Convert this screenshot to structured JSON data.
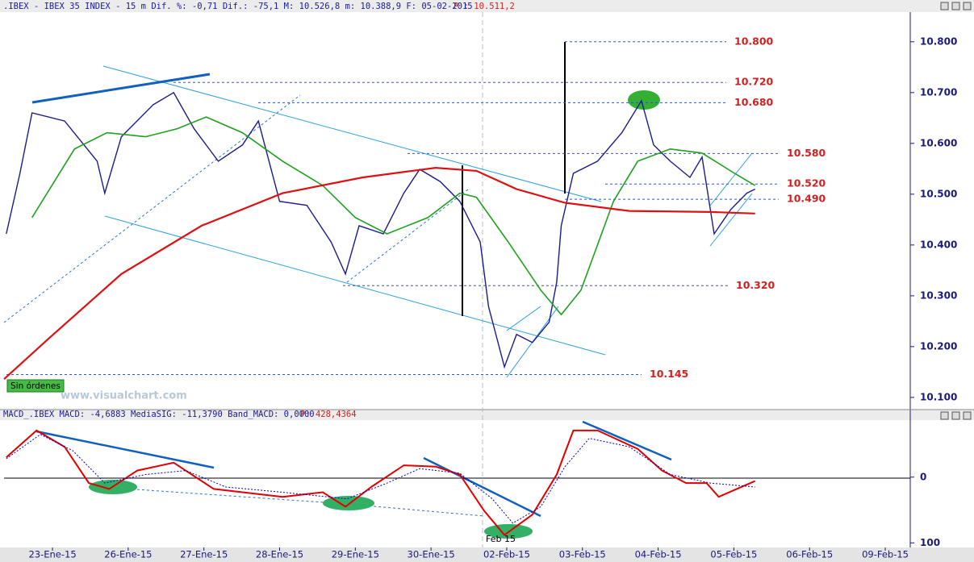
{
  "chart_data": [
    {
      "type": "line",
      "title": ".IBEX - IBEX 35 INDEX -   15 m Dif. %: -0,71 Dif.: -75,1 M: 10.526,8 m: 10.388,9 F: 05-02-2015",
      "price_label": "P : 10.511,2",
      "xlim": [
        -0.64,
        11.33
      ],
      "ylim": [
        10076,
        10860
      ],
      "yticks": [
        {
          "value": 10100,
          "label": "10.100"
        },
        {
          "value": 10200,
          "label": "10.200"
        },
        {
          "value": 10300,
          "label": "10.300"
        },
        {
          "value": 10400,
          "label": "10.400"
        },
        {
          "value": 10500,
          "label": "10.500"
        },
        {
          "value": 10600,
          "label": "10.600"
        },
        {
          "value": 10700,
          "label": "10.700"
        },
        {
          "value": 10800,
          "label": "10.800"
        }
      ],
      "levels": [
        {
          "value": 10800,
          "label": "10.800"
        },
        {
          "value": 10720,
          "label": "10.720"
        },
        {
          "value": 10680,
          "label": "10.680"
        },
        {
          "value": 10580,
          "label": "10.580"
        },
        {
          "value": 10520,
          "label": "10.520"
        },
        {
          "value": 10490,
          "label": "10.490"
        },
        {
          "value": 10320,
          "label": "10.320"
        },
        {
          "value": 10145,
          "label": "10.145"
        }
      ],
      "series": [
        {
          "color": "#1c1c8a",
          "width": 1.4,
          "dash": false,
          "x": [
            -0.61,
            -0.43,
            -0.27,
            0.16,
            0.59,
            0.69,
            0.91,
            1.33,
            1.6,
            1.87,
            2.19,
            2.51,
            2.72,
            3.0,
            3.36,
            3.68,
            3.87,
            4.05,
            4.37,
            4.64,
            4.85,
            5.12,
            5.38,
            5.65,
            5.76,
            5.97,
            6.13,
            6.34,
            6.56,
            6.66,
            6.72,
            6.88,
            7.2,
            7.52,
            7.78,
            7.94,
            8.16,
            8.42,
            8.58,
            8.74,
            8.96,
            9.17,
            9.28
          ],
          "values": [
            10422,
            10541,
            10660,
            10644,
            10565,
            10502,
            10613,
            10676,
            10700,
            10629,
            10565,
            10597,
            10644,
            10486,
            10478,
            10406,
            10343,
            10438,
            10422,
            10502,
            10549,
            10525,
            10486,
            10406,
            10279,
            10160,
            10224,
            10208,
            10248,
            10327,
            10438,
            10541,
            10565,
            10621,
            10684,
            10597,
            10565,
            10533,
            10573,
            10422,
            10470,
            10502,
            10510
          ]
        },
        {
          "color": "#1fa01f",
          "width": 1.6,
          "dash": false,
          "x": [
            -0.27,
            0.29,
            0.72,
            1.23,
            1.65,
            2.03,
            2.51,
            3.04,
            3.57,
            4.0,
            4.42,
            4.96,
            5.38,
            5.6,
            6.02,
            6.45,
            6.72,
            6.98,
            7.41,
            7.73,
            8.16,
            8.58,
            9.01,
            9.28
          ],
          "values": [
            10454,
            10589,
            10621,
            10613,
            10629,
            10652,
            10621,
            10565,
            10517,
            10454,
            10422,
            10454,
            10502,
            10494,
            10406,
            10311,
            10263,
            10311,
            10486,
            10565,
            10589,
            10581,
            10541,
            10517
          ]
        },
        {
          "color": "#dd1111",
          "width": 2.2,
          "dash": false,
          "x": [
            -0.64,
            -0.05,
            0.91,
            1.97,
            3.04,
            4.1,
            5.06,
            5.6,
            6.13,
            6.77,
            7.62,
            8.69,
            9.28
          ],
          "values": [
            10136,
            10216,
            10343,
            10438,
            10502,
            10533,
            10552,
            10546,
            10510,
            10483,
            10467,
            10465,
            10462
          ]
        }
      ]
    },
    {
      "type": "line",
      "title": "MACD_.IBEX MACD: -4,6883 MediaSIG: -11,3790 Band_MACD: 0,0000",
      "price_label": "P: 428,4364",
      "xlim": [
        -0.64,
        11.33
      ],
      "ylim": [
        -107,
        88
      ],
      "yticks": [
        0,
        {
          "value": -100,
          "label": "100"
        }
      ],
      "xticks": [
        {
          "value": 0,
          "label": "23-Ene-15"
        },
        {
          "value": 1,
          "label": "26-Ene-15"
        },
        {
          "value": 2,
          "label": "27-Ene-15"
        },
        {
          "value": 3,
          "label": "28-Ene-15"
        },
        {
          "value": 4,
          "label": "29-Ene-15"
        },
        {
          "value": 5,
          "label": "30-Ene-15"
        },
        {
          "value": 6,
          "label": "02-Feb-15"
        },
        {
          "value": 7,
          "label": "03-Feb-15"
        },
        {
          "value": 8,
          "label": "04-Feb-15"
        },
        {
          "value": 9,
          "label": "05-Feb-15"
        },
        {
          "value": 10,
          "label": "06-Feb-15"
        },
        {
          "value": 11,
          "label": "09-Feb-15"
        }
      ],
      "series": [
        {
          "color": "#e00000",
          "width": 2,
          "dash": false,
          "x": [
            -0.61,
            -0.21,
            0.16,
            0.48,
            0.75,
            1.12,
            1.6,
            2.13,
            2.51,
            3.04,
            3.57,
            3.87,
            4.21,
            4.64,
            5.06,
            5.38,
            5.7,
            5.97,
            6.34,
            6.66,
            6.88,
            7.2,
            7.73,
            8.05,
            8.37,
            8.64,
            8.8,
            9.28
          ],
          "values": [
            30,
            71,
            46,
            -9,
            -18,
            10,
            22,
            -18,
            -23,
            -30,
            -23,
            -45,
            -15,
            18,
            16,
            4,
            -51,
            -88,
            -57,
            4,
            71,
            71,
            43,
            10,
            -9,
            -9,
            -30,
            -6
          ]
        },
        {
          "color": "#0000cc",
          "width": 1,
          "dash": true,
          "x": [
            -0.61,
            -0.16,
            0.27,
            0.69,
            1.23,
            1.76,
            2.29,
            3.04,
            3.89,
            4.42,
            4.85,
            5.38,
            5.81,
            6.08,
            6.45,
            6.77,
            7.09,
            7.62,
            8.16,
            8.69,
            9.28
          ],
          "values": [
            28,
            65,
            40,
            -9,
            4,
            10,
            -15,
            -23,
            -33,
            -9,
            13,
            6,
            -33,
            -70,
            -45,
            16,
            59,
            46,
            4,
            -9,
            -15
          ]
        }
      ]
    }
  ],
  "ui": {
    "button": "Sin órdenes",
    "watermark": "www.visualchart.com",
    "period_marker": "Feb 15"
  }
}
